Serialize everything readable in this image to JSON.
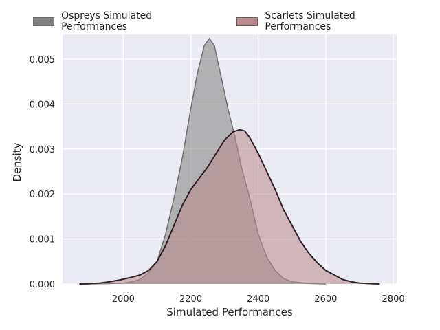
{
  "chart_data": {
    "type": "area",
    "title": "",
    "xlabel": "Simulated Performances",
    "ylabel": "Density",
    "xlim": [
      1820,
      2810
    ],
    "ylim": [
      0,
      0.00555
    ],
    "xticks": [
      2000,
      2200,
      2400,
      2600,
      2800
    ],
    "yticks": [
      0.0,
      0.001,
      0.002,
      0.003,
      0.004,
      0.005
    ],
    "xtick_labels": [
      "2000",
      "2200",
      "2400",
      "2600",
      "2800"
    ],
    "ytick_labels": [
      "0.000",
      "0.001",
      "0.002",
      "0.003",
      "0.004",
      "0.005"
    ],
    "grid": true,
    "legend_position": "top",
    "series": [
      {
        "name": "Ospreys Simulated Performances",
        "color": "#808080",
        "line_color": "#6e6e6e",
        "points": [
          [
            1870,
            0
          ],
          [
            1950,
            5e-06
          ],
          [
            2000,
            2e-05
          ],
          [
            2025,
            5e-05
          ],
          [
            2050,
            0.0001
          ],
          [
            2075,
            0.00025
          ],
          [
            2100,
            0.0005
          ],
          [
            2125,
            0.0011
          ],
          [
            2150,
            0.0019
          ],
          [
            2175,
            0.0028
          ],
          [
            2200,
            0.0039
          ],
          [
            2220,
            0.0047
          ],
          [
            2240,
            0.0053
          ],
          [
            2255,
            0.00546
          ],
          [
            2270,
            0.0053
          ],
          [
            2290,
            0.0046
          ],
          [
            2310,
            0.0039
          ],
          [
            2330,
            0.0033
          ],
          [
            2350,
            0.0026
          ],
          [
            2375,
            0.0019
          ],
          [
            2400,
            0.0011
          ],
          [
            2425,
            0.0006
          ],
          [
            2450,
            0.0003
          ],
          [
            2475,
            0.00012
          ],
          [
            2500,
            5e-05
          ],
          [
            2550,
            1e-05
          ],
          [
            2600,
            0
          ]
        ]
      },
      {
        "name": "Scarlets Simulated Performances",
        "color": "#b98b8d",
        "line_color": "#2e1f26",
        "points": [
          [
            1870,
            0
          ],
          [
            1900,
            5e-06
          ],
          [
            1930,
            2e-05
          ],
          [
            1960,
            5e-05
          ],
          [
            1990,
            9e-05
          ],
          [
            2025,
            0.00015
          ],
          [
            2050,
            0.0002
          ],
          [
            2075,
            0.0003
          ],
          [
            2100,
            0.0005
          ],
          [
            2125,
            0.00085
          ],
          [
            2150,
            0.0013
          ],
          [
            2175,
            0.00175
          ],
          [
            2200,
            0.0021
          ],
          [
            2225,
            0.00235
          ],
          [
            2250,
            0.0026
          ],
          [
            2275,
            0.0029
          ],
          [
            2300,
            0.0032
          ],
          [
            2325,
            0.00338
          ],
          [
            2345,
            0.00343
          ],
          [
            2360,
            0.0034
          ],
          [
            2375,
            0.00325
          ],
          [
            2400,
            0.0029
          ],
          [
            2425,
            0.0025
          ],
          [
            2450,
            0.0021
          ],
          [
            2475,
            0.00165
          ],
          [
            2500,
            0.0013
          ],
          [
            2525,
            0.00095
          ],
          [
            2550,
            0.00068
          ],
          [
            2575,
            0.00047
          ],
          [
            2600,
            0.0003
          ],
          [
            2625,
            0.0002
          ],
          [
            2650,
            0.0001
          ],
          [
            2675,
            5e-05
          ],
          [
            2700,
            2e-05
          ],
          [
            2730,
            8e-06
          ],
          [
            2760,
            0
          ]
        ]
      }
    ]
  }
}
